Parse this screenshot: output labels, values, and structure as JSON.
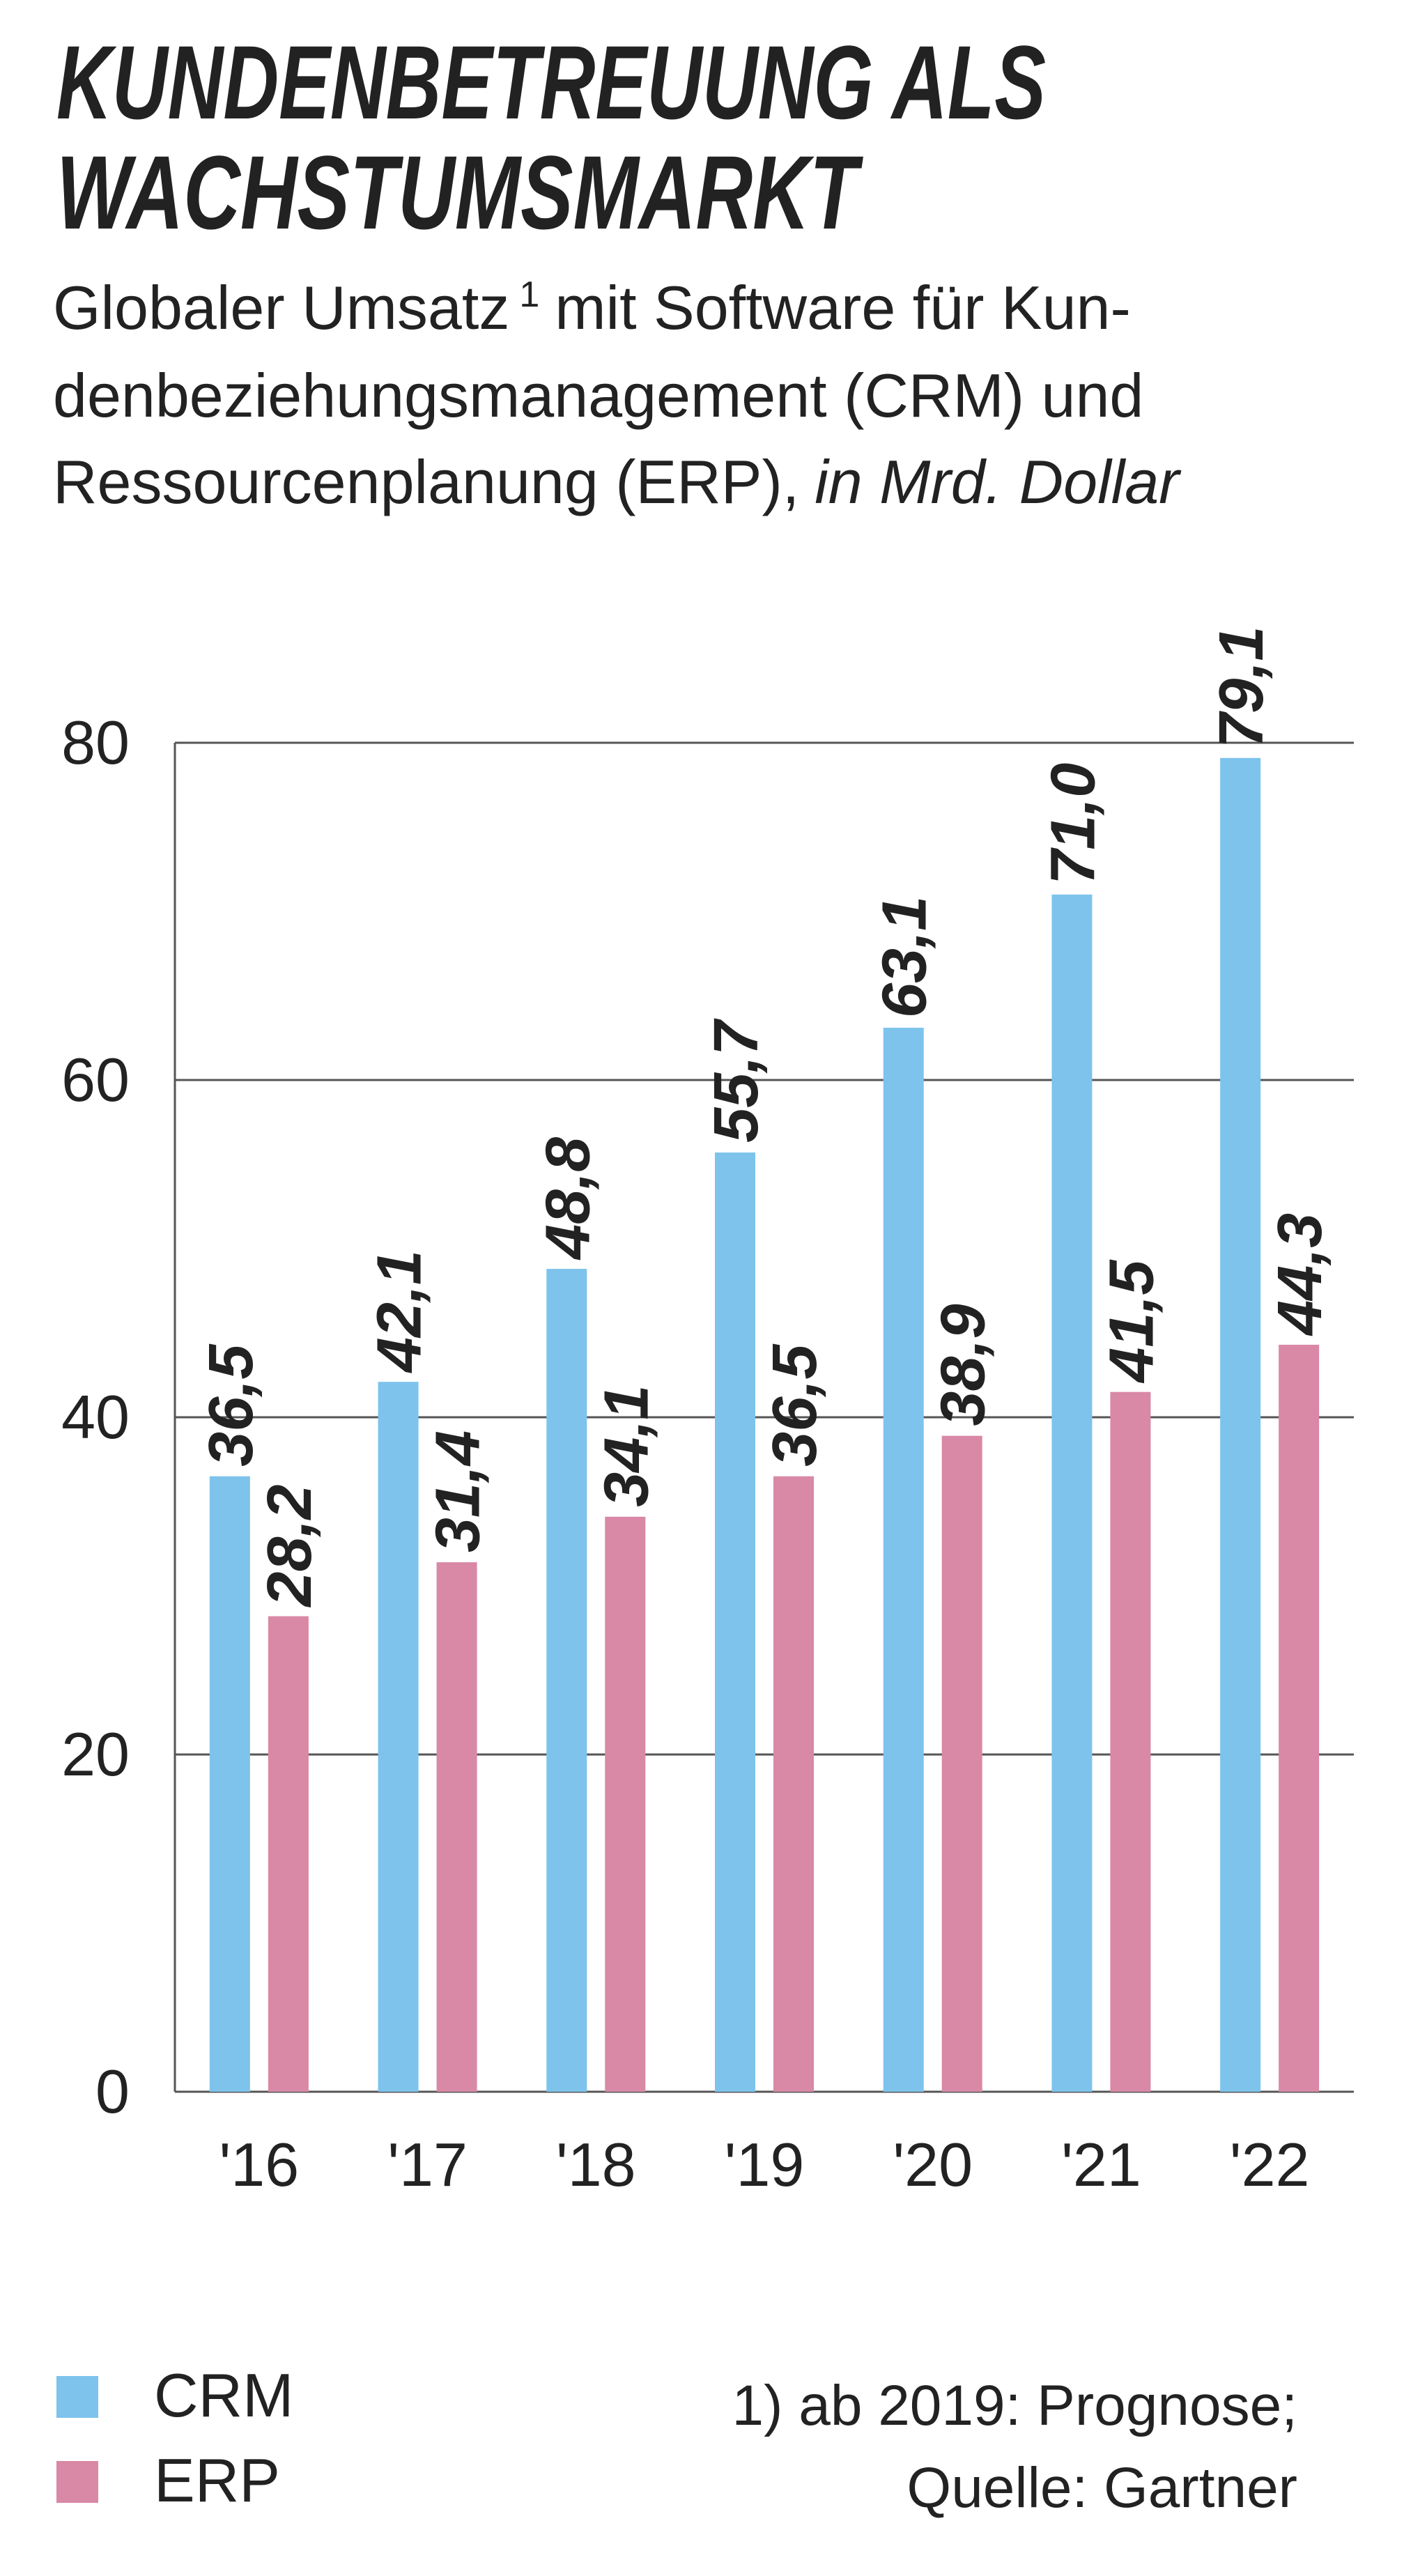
{
  "chart_data": {
    "type": "bar",
    "title": [
      "KUNDENBETREUUNG ALS",
      "WACHSTUMSMARKT"
    ],
    "subtitle": [
      "Globaler Umsatz",
      "1",
      "mit Software für Kun-",
      "denbeziehungsmanagement (CRM) und",
      "Ressourcenplanung (ERP),",
      "in Mrd. Dollar"
    ],
    "categories": [
      "'16",
      "'17",
      "'18",
      "'19",
      "'20",
      "'21",
      "'22"
    ],
    "series": [
      {
        "name": "CRM",
        "color": "#7dc3ec",
        "values": [
          36.5,
          42.1,
          48.8,
          55.7,
          63.1,
          71.0,
          79.1
        ],
        "value_labels": [
          "36,5",
          "42,1",
          "48,8",
          "55,7",
          "63,1",
          "71,0",
          "79,1"
        ]
      },
      {
        "name": "ERP",
        "color": "#d988a6",
        "values": [
          28.2,
          31.4,
          34.1,
          36.5,
          38.9,
          41.5,
          44.3
        ],
        "value_labels": [
          "28,2",
          "31,4",
          "34,1",
          "36,5",
          "38,9",
          "41,5",
          "44,3"
        ]
      }
    ],
    "ylim": [
      0,
      80
    ],
    "yticks": [
      0,
      20,
      40,
      60,
      80
    ],
    "grid": true,
    "footnote": [
      "1) ab 2019: Prognose;",
      "Quelle: Gartner"
    ]
  }
}
